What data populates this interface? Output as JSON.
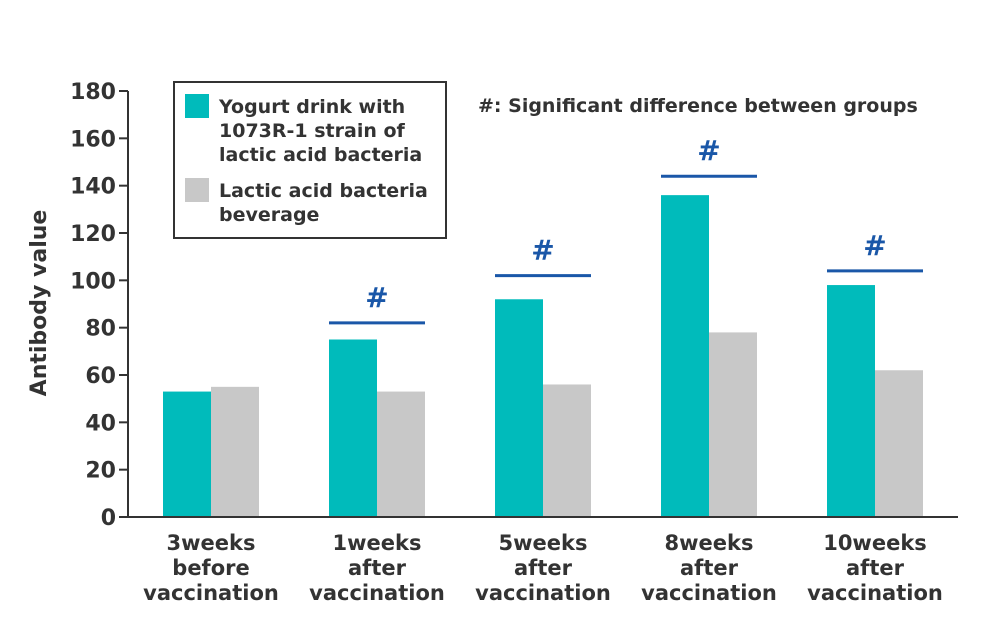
{
  "chart_data": {
    "type": "bar",
    "ylabel": "Antibody value",
    "xlabel": "",
    "ylim": [
      0,
      180
    ],
    "yticks": [
      0,
      20,
      40,
      60,
      80,
      100,
      120,
      140,
      160,
      180
    ],
    "categories": [
      [
        "3weeks",
        "before",
        "vaccination"
      ],
      [
        "1weeks",
        "after",
        "vaccination"
      ],
      [
        "5weeks",
        "after",
        "vaccination"
      ],
      [
        "8weeks",
        "after",
        "vaccination"
      ],
      [
        "10weeks",
        "after",
        "vaccination"
      ]
    ],
    "series": [
      {
        "name_lines": [
          "Yogurt drink with",
          "1073R-1 strain of",
          "lactic acid bacteria"
        ],
        "color": "#00bbbb",
        "values": [
          53,
          75,
          92,
          136,
          98
        ]
      },
      {
        "name_lines": [
          "Lactic acid bacteria",
          "beverage"
        ],
        "color": "#c8c8c8",
        "values": [
          55,
          53,
          56,
          78,
          62
        ]
      }
    ],
    "significance": {
      "marker": "#",
      "color": "#1a57a8",
      "flags": [
        false,
        true,
        true,
        true,
        true
      ],
      "bar_levels": [
        null,
        82,
        102,
        144,
        104
      ]
    },
    "annotation": "#: Significant difference between groups",
    "legend_position": "top-left",
    "grid": false
  }
}
